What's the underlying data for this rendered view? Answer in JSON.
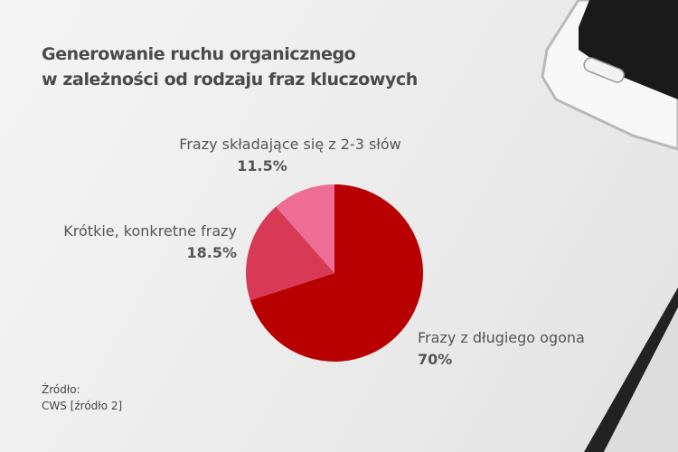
{
  "chart_data": {
    "type": "pie",
    "title": "Generowanie ruchu organicznego w zależności od rodzaju fraz kluczowych",
    "title_lines": [
      "Generowanie ruchu organicznego",
      "w zależności od rodzaju fraz kluczowych"
    ],
    "slices": [
      {
        "label": "Frazy z długiego ogona",
        "value": 70,
        "value_label": "70%",
        "color": "#b80000"
      },
      {
        "label": "Krótkie, konkretne frazy",
        "value": 18.5,
        "value_label": "18.5%",
        "color": "#d83a55"
      },
      {
        "label": "Frazy składające się z 2-3 słów",
        "value": 11.5,
        "value_label": "11.5%",
        "color": "#ee6d94"
      }
    ],
    "start_angle": "top",
    "direction": "clockwise"
  },
  "source": {
    "label": "Źródło:",
    "text": "CWS [źródło 2]"
  }
}
